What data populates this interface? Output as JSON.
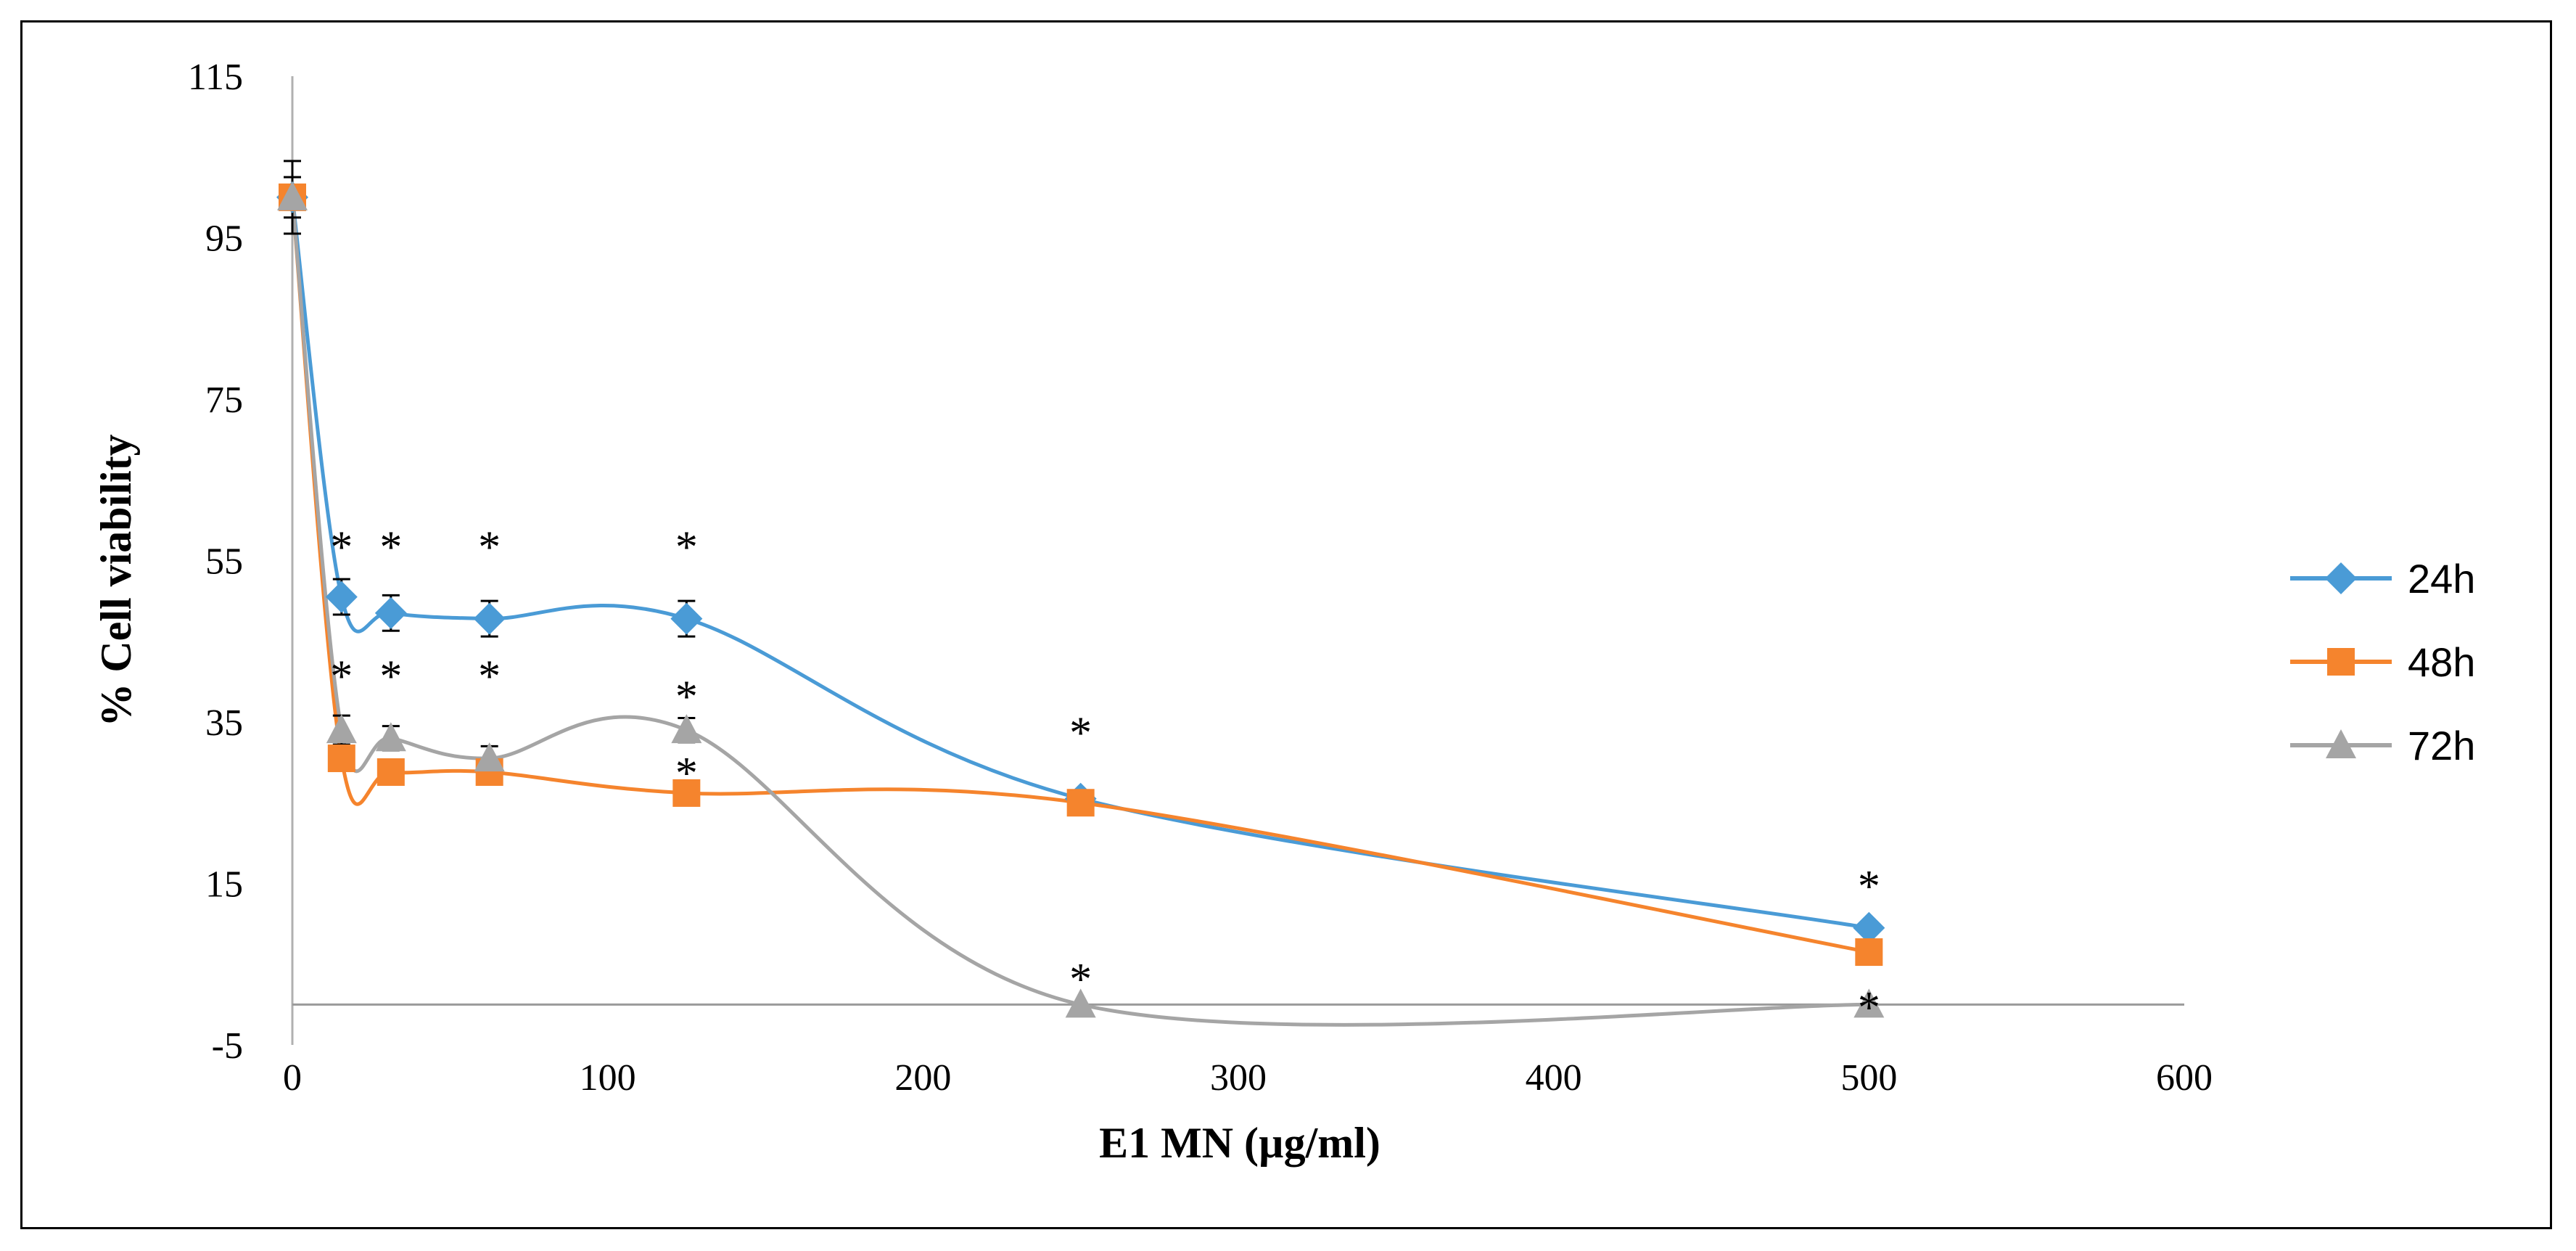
{
  "chart_data": {
    "type": "line",
    "title": "",
    "xlabel": "E1 MN (µg/ml)",
    "ylabel": "% Cell viability",
    "xlim": [
      0,
      600
    ],
    "ylim": [
      -5,
      115
    ],
    "x_ticks": [
      0,
      100,
      200,
      300,
      400,
      500,
      600
    ],
    "y_ticks": [
      -5,
      15,
      35,
      55,
      75,
      95,
      115
    ],
    "legend_position": "right",
    "series": [
      {
        "name": "24h",
        "color": "#4A9BD6",
        "marker": "diamond",
        "x": [
          0,
          15.6,
          31.25,
          62.5,
          125,
          250,
          500
        ],
        "y": [
          100,
          50.5,
          48.5,
          47.8,
          47.8,
          25.5,
          9.5
        ],
        "err": [
          4.5,
          2.2,
          2.2,
          2.2,
          2.2,
          0.8,
          0.6
        ]
      },
      {
        "name": "48h",
        "color": "#F5842D",
        "marker": "square",
        "x": [
          0,
          15.6,
          31.25,
          62.5,
          125,
          250,
          500
        ],
        "y": [
          100,
          30.5,
          28.8,
          28.8,
          26.2,
          25,
          6.5
        ],
        "err": [
          2.5,
          1.0,
          1.0,
          0.8,
          0.8,
          0.8,
          0.5
        ]
      },
      {
        "name": "72h",
        "color": "#A5A5A5",
        "marker": "triangle",
        "x": [
          0,
          15.6,
          31.25,
          62.5,
          125,
          250,
          500
        ],
        "y": [
          100,
          34,
          33,
          30.5,
          34,
          0,
          0
        ],
        "err": [
          1.5,
          1.8,
          1.5,
          1.5,
          1.5,
          0.3,
          0.3
        ]
      }
    ],
    "significance_marks": [
      {
        "x": 15.6,
        "y": 57.5,
        "text": "*"
      },
      {
        "x": 31.25,
        "y": 57.5,
        "text": "*"
      },
      {
        "x": 62.5,
        "y": 57.5,
        "text": "*"
      },
      {
        "x": 125,
        "y": 57.5,
        "text": "*"
      },
      {
        "x": 15.6,
        "y": 41.5,
        "text": "*"
      },
      {
        "x": 31.25,
        "y": 41.5,
        "text": "*"
      },
      {
        "x": 62.5,
        "y": 41.5,
        "text": "*"
      },
      {
        "x": 125,
        "y": 39,
        "text": "*"
      },
      {
        "x": 125,
        "y": 29.5,
        "text": "*"
      },
      {
        "x": 250,
        "y": 34.5,
        "text": "*"
      },
      {
        "x": 250,
        "y": 4,
        "text": "*"
      },
      {
        "x": 500,
        "y": 15.5,
        "text": "*"
      },
      {
        "x": 500,
        "y": 0.5,
        "text": "*"
      }
    ]
  }
}
